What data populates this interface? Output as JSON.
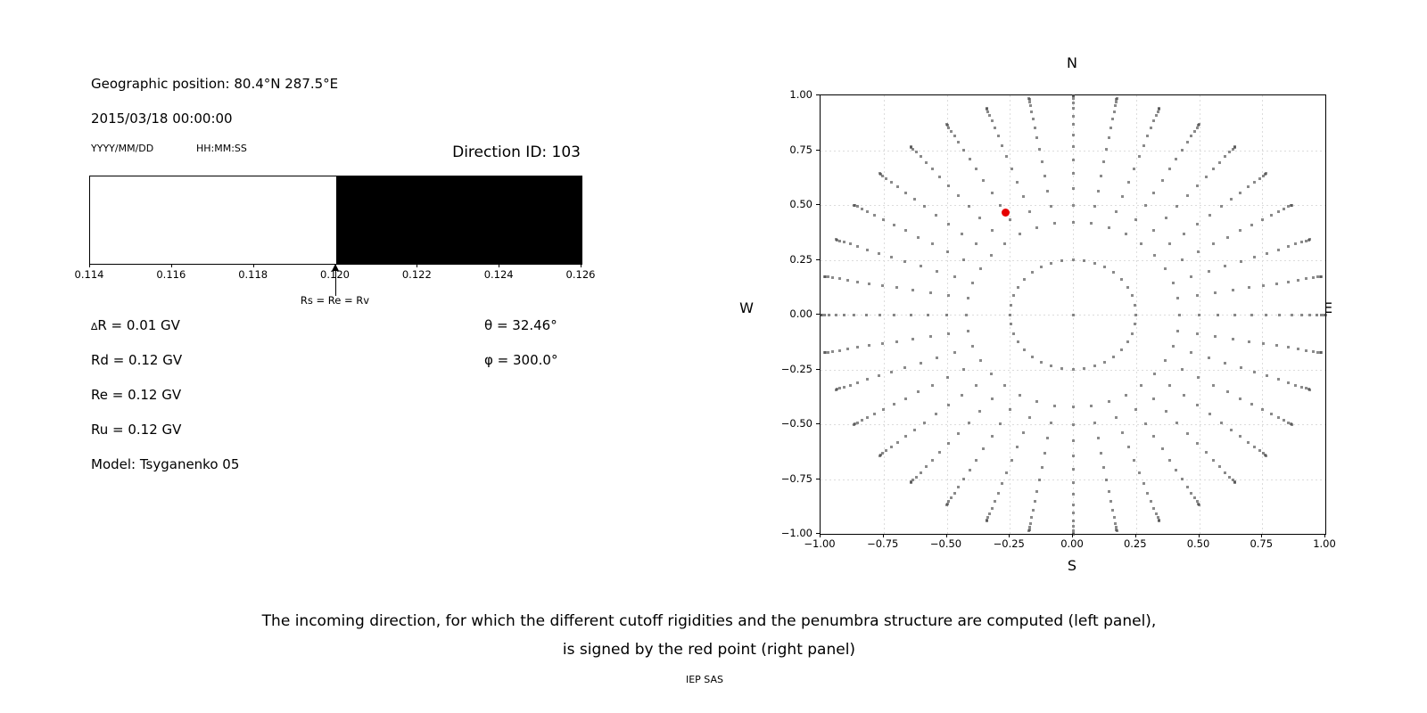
{
  "left_panel": {
    "geo": "Geographic position: 80.4°N 287.5°E",
    "datetime": "2015/03/18 00:00:00",
    "date_fmt": "YYYY/MM/DD",
    "time_fmt": "HH:MM:SS",
    "direction_id": "Direction ID: 103",
    "delta_r": {
      "symbol": "∆",
      "rest": "R = 0.01 GV"
    },
    "rd": "Rd = 0.12 GV",
    "re": "Re = 0.12 GV",
    "ru": "Ru = 0.12 GV",
    "model": "Model: Tsyganenko 05",
    "theta": "θ = 32.46°",
    "phi": "φ = 300.0°"
  },
  "caption": {
    "line1": "The incoming direction, for which the different cutoff rigidities and the penumbra structure are computed (left panel),",
    "line2": "is signed by the red point (right panel)",
    "credit": "IEP SAS"
  },
  "chart_data": [
    {
      "id": "penumbra-structure",
      "type": "bar",
      "xlim": [
        0.114,
        0.126
      ],
      "xticks": [
        0.114,
        0.116,
        0.118,
        0.12,
        0.122,
        0.124,
        0.126
      ],
      "xtick_labels": [
        "0.114",
        "0.116",
        "0.118",
        "0.120",
        "0.122",
        "0.124",
        "0.126"
      ],
      "bands": [
        {
          "from": 0.114,
          "to": 0.12,
          "state": "allowed",
          "color": "#ffffff"
        },
        {
          "from": 0.12,
          "to": 0.126,
          "state": "forbidden",
          "color": "#000000"
        }
      ],
      "annotation": {
        "x": 0.12,
        "label": "Rs = Re = Rv"
      },
      "grid": false
    },
    {
      "id": "incoming-directions",
      "type": "scatter",
      "xlim": [
        -1.0,
        1.0
      ],
      "ylim": [
        -1.0,
        1.0
      ],
      "xtick_labels": [
        "−1.00",
        "−0.75",
        "−0.50",
        "−0.25",
        "0.00",
        "0.25",
        "0.50",
        "0.75",
        "1.00"
      ],
      "ytick_labels": [
        "1.00",
        "0.75",
        "0.50",
        "0.25",
        "0.00",
        "−0.25",
        "−0.50",
        "−0.75",
        "−1.00"
      ],
      "tick_values": [
        -1.0,
        -0.75,
        -0.5,
        -0.25,
        0.0,
        0.25,
        0.5,
        0.75,
        1.0
      ],
      "grid": true,
      "grid_step": 0.25,
      "compass": {
        "top": "N",
        "bottom": "S",
        "left": "W",
        "right": "E"
      },
      "dot_color": "#8f8f8f",
      "pattern": {
        "radius_rule": "r = sin(zenith)",
        "center_dot": true,
        "ring_radius": 0.25,
        "azimuth_step_deg": 10,
        "spoke_zenith_deg": [
          25,
          30,
          35,
          40,
          45,
          50,
          55,
          60,
          65,
          70,
          75,
          80,
          85,
          90
        ]
      },
      "selected_point": {
        "x": -0.268,
        "y": 0.466,
        "color": "#e60000",
        "note": "red point = incoming direction ID 103"
      }
    }
  ]
}
